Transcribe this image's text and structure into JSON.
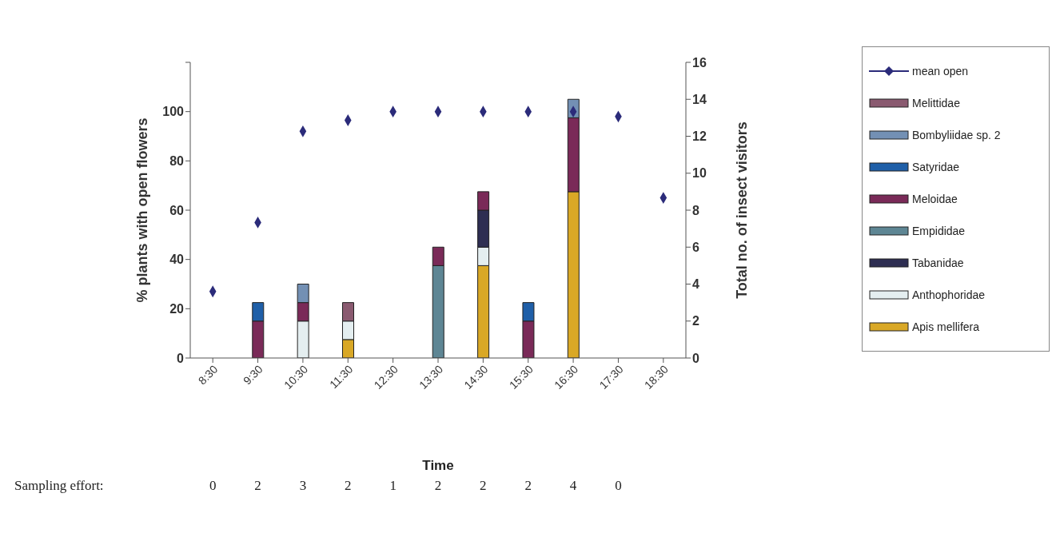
{
  "chart_data": {
    "type": "bar",
    "stacked": true,
    "xlabel": "Time",
    "ylabel": "% plants with open flowers",
    "y2label": "Total no. of insect visitors",
    "categories": [
      "8:30",
      "9:30",
      "10:30",
      "11:30",
      "12:30",
      "13:30",
      "14:30",
      "15:30",
      "16:30",
      "17:30",
      "18:30"
    ],
    "ylim": [
      0,
      120
    ],
    "yticks": [
      0,
      20,
      40,
      60,
      80,
      100,
      {
        "value": 120,
        "label": null
      }
    ],
    "y2lim": [
      0,
      16
    ],
    "y2ticks": [
      0,
      2,
      4,
      6,
      8,
      10,
      12,
      14,
      16
    ],
    "legend": "right",
    "series": [
      {
        "name": "Apis mellifera",
        "color": "#d9a826",
        "axis": "y2",
        "values": [
          null,
          null,
          null,
          1,
          null,
          null,
          5,
          null,
          9,
          null,
          null
        ]
      },
      {
        "name": "Anthophoridae",
        "color": "#e4eef0",
        "axis": "y2",
        "values": [
          null,
          null,
          2,
          1,
          null,
          null,
          1,
          null,
          null,
          null,
          null
        ]
      },
      {
        "name": "Tabanidae",
        "color": "#2e2e52",
        "axis": "y2",
        "values": [
          null,
          null,
          null,
          null,
          null,
          null,
          2,
          null,
          null,
          null,
          null
        ]
      },
      {
        "name": "Empididae",
        "color": "#5e8694",
        "axis": "y2",
        "values": [
          null,
          null,
          null,
          null,
          null,
          5,
          null,
          null,
          null,
          null,
          null
        ]
      },
      {
        "name": "Meloidae",
        "color": "#7a2a58",
        "axis": "y2",
        "values": [
          null,
          2,
          1,
          null,
          null,
          1,
          1,
          2,
          4,
          null,
          null
        ]
      },
      {
        "name": "Satyridae",
        "color": "#1f5fa8",
        "axis": "y2",
        "values": [
          null,
          1,
          null,
          null,
          null,
          null,
          null,
          1,
          null,
          null,
          null
        ]
      },
      {
        "name": "Bombyliidae sp. 2",
        "color": "#7390b4",
        "axis": "y2",
        "values": [
          null,
          null,
          1,
          null,
          null,
          null,
          null,
          null,
          1,
          null,
          null
        ]
      },
      {
        "name": "Melittidae",
        "color": "#8a5a70",
        "axis": "y2",
        "values": [
          null,
          null,
          null,
          1,
          null,
          null,
          null,
          null,
          null,
          null,
          null
        ]
      },
      {
        "name": "mean open",
        "type": "scatter",
        "marker": "diamond",
        "color": "#2b2b7a",
        "axis": "y",
        "values": [
          27,
          55,
          92,
          96.5,
          100,
          100,
          100,
          100,
          100,
          98,
          65
        ]
      }
    ],
    "annotations": [
      "Sampling effort:",
      "0",
      "2",
      "3",
      "2",
      "1",
      "2",
      "2",
      "2",
      "4",
      "0"
    ]
  }
}
